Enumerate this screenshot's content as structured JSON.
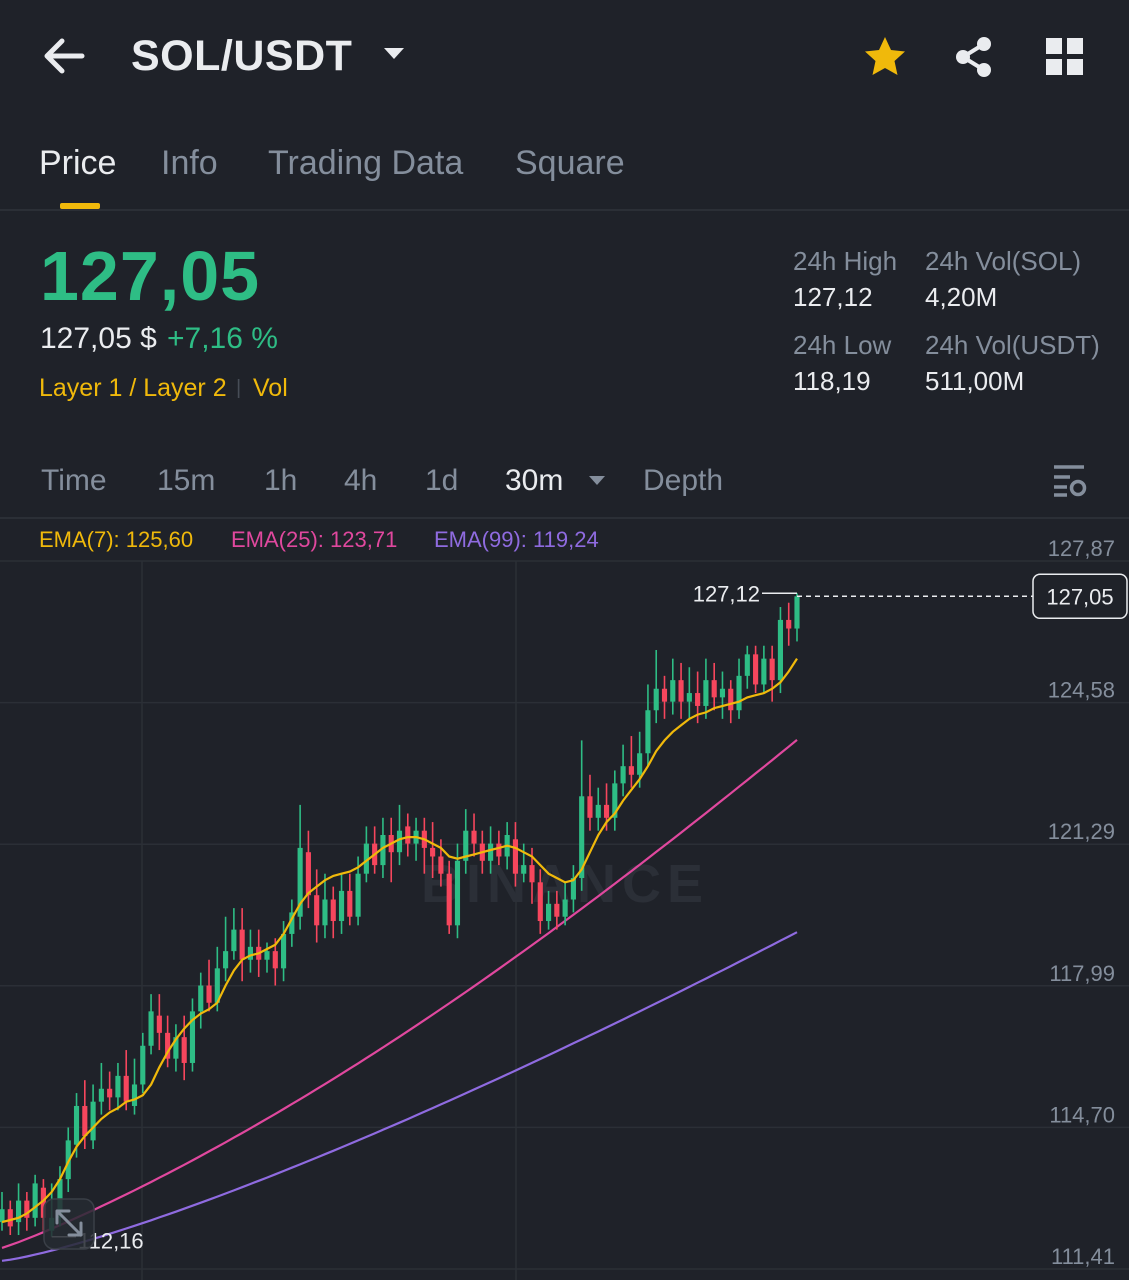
{
  "header": {
    "pair": "SOL/USDT",
    "icons": {
      "back": "arrow-left-icon",
      "pair_menu": "caret-down-icon",
      "favorite": "star-icon",
      "share": "share-icon",
      "more": "grid-icon"
    },
    "favorite_color": "#f0b90b"
  },
  "tabs": [
    {
      "label": "Price",
      "active": true
    },
    {
      "label": "Info",
      "active": false
    },
    {
      "label": "Trading Data",
      "active": false
    },
    {
      "label": "Square",
      "active": false
    }
  ],
  "price": {
    "last": "127,05",
    "fiat": "127,05 $",
    "change": "+7,16 %",
    "tag_layer": "Layer 1 / Layer 2",
    "tag_vol": "Vol",
    "up_color": "#2ebd85"
  },
  "stats": {
    "high_label": "24h High",
    "high_value": "127,12",
    "vol_sol_label": "24h Vol(SOL)",
    "vol_sol_value": "4,20M",
    "low_label": "24h Low",
    "low_value": "118,19",
    "vol_usdt_label": "24h Vol(USDT)",
    "vol_usdt_value": "511,00M"
  },
  "intervals": [
    {
      "label": "Time",
      "active": false
    },
    {
      "label": "15m",
      "active": false
    },
    {
      "label": "1h",
      "active": false
    },
    {
      "label": "4h",
      "active": false
    },
    {
      "label": "1d",
      "active": false
    },
    {
      "label": "30m",
      "active": true
    },
    {
      "label": "Depth",
      "active": false
    }
  ],
  "interval_icons": {
    "dropdown": "caret-down-icon",
    "settings": "chart-settings-icon"
  },
  "ema": [
    {
      "label": "EMA(7): 125,60",
      "color": "#f0b90b"
    },
    {
      "label": "EMA(25): 123,71",
      "color": "#e0489e"
    },
    {
      "label": "EMA(99): 119,24",
      "color": "#8f6be0"
    }
  ],
  "chart_data": {
    "type": "candlestick",
    "y_ticks": [
      "127,87",
      "124,58",
      "121,29",
      "117,99",
      "114,70",
      "111,41"
    ],
    "ylim": [
      111.41,
      127.87
    ],
    "current_price_label": "127,05",
    "current_price": 127.05,
    "high_marker": "127,12",
    "low_marker": "112,16",
    "watermark": "BINANCE",
    "colors": {
      "up": "#2ebd85",
      "down": "#f6465d",
      "ema7": "#f0b90b",
      "ema25": "#e0489e",
      "ema99": "#8f6be0"
    },
    "candles": [
      {
        "o": 112.5,
        "c": 112.8,
        "h": 113.2,
        "l": 112.3
      },
      {
        "o": 112.8,
        "c": 112.4,
        "h": 113.0,
        "l": 112.2
      },
      {
        "o": 112.5,
        "c": 113.0,
        "h": 113.4,
        "l": 112.2
      },
      {
        "o": 113.0,
        "c": 112.6,
        "h": 113.2,
        "l": 112.3
      },
      {
        "o": 112.6,
        "c": 113.4,
        "h": 113.6,
        "l": 112.4
      },
      {
        "o": 113.3,
        "c": 112.6,
        "h": 113.5,
        "l": 112.3
      },
      {
        "o": 112.3,
        "c": 112.6,
        "h": 113.4,
        "l": 112.16
      },
      {
        "o": 112.6,
        "c": 113.5,
        "h": 113.8,
        "l": 112.4
      },
      {
        "o": 113.5,
        "c": 114.4,
        "h": 114.7,
        "l": 113.2
      },
      {
        "o": 114.3,
        "c": 115.2,
        "h": 115.5,
        "l": 114.0
      },
      {
        "o": 115.2,
        "c": 114.5,
        "h": 115.8,
        "l": 114.2
      },
      {
        "o": 114.4,
        "c": 115.3,
        "h": 115.7,
        "l": 114.2
      },
      {
        "o": 115.3,
        "c": 115.6,
        "h": 116.2,
        "l": 115.0
      },
      {
        "o": 115.6,
        "c": 115.4,
        "h": 116.0,
        "l": 115.1
      },
      {
        "o": 115.4,
        "c": 115.9,
        "h": 116.2,
        "l": 115.1
      },
      {
        "o": 115.9,
        "c": 115.3,
        "h": 116.5,
        "l": 115.1
      },
      {
        "o": 115.2,
        "c": 115.7,
        "h": 116.3,
        "l": 115.0
      },
      {
        "o": 115.7,
        "c": 116.6,
        "h": 116.9,
        "l": 115.5
      },
      {
        "o": 116.6,
        "c": 117.4,
        "h": 117.8,
        "l": 116.4
      },
      {
        "o": 117.3,
        "c": 116.9,
        "h": 117.8,
        "l": 116.5
      },
      {
        "o": 116.9,
        "c": 116.3,
        "h": 117.3,
        "l": 116.1
      },
      {
        "o": 116.3,
        "c": 116.8,
        "h": 117.1,
        "l": 116.0
      },
      {
        "o": 116.8,
        "c": 116.2,
        "h": 117.3,
        "l": 115.8
      },
      {
        "o": 116.2,
        "c": 117.4,
        "h": 117.7,
        "l": 116.0
      },
      {
        "o": 117.4,
        "c": 118.0,
        "h": 118.3,
        "l": 117.0
      },
      {
        "o": 118.0,
        "c": 117.6,
        "h": 118.6,
        "l": 117.4
      },
      {
        "o": 117.6,
        "c": 118.4,
        "h": 118.9,
        "l": 117.4
      },
      {
        "o": 118.4,
        "c": 118.8,
        "h": 119.6,
        "l": 118.1
      },
      {
        "o": 118.8,
        "c": 119.3,
        "h": 119.8,
        "l": 118.6
      },
      {
        "o": 119.3,
        "c": 118.6,
        "h": 119.8,
        "l": 118.1
      },
      {
        "o": 118.6,
        "c": 118.9,
        "h": 119.3,
        "l": 118.3
      },
      {
        "o": 118.9,
        "c": 118.6,
        "h": 119.3,
        "l": 118.2
      },
      {
        "o": 118.6,
        "c": 118.8,
        "h": 119.0,
        "l": 118.3
      },
      {
        "o": 118.8,
        "c": 118.4,
        "h": 119.1,
        "l": 118.0
      },
      {
        "o": 118.4,
        "c": 119.2,
        "h": 119.5,
        "l": 118.1
      },
      {
        "o": 119.2,
        "c": 119.7,
        "h": 120.0,
        "l": 118.9
      },
      {
        "o": 119.6,
        "c": 121.2,
        "h": 122.2,
        "l": 119.3
      },
      {
        "o": 121.1,
        "c": 120.1,
        "h": 121.6,
        "l": 119.8
      },
      {
        "o": 120.1,
        "c": 119.4,
        "h": 120.7,
        "l": 119.0
      },
      {
        "o": 119.4,
        "c": 120.0,
        "h": 120.6,
        "l": 119.1
      },
      {
        "o": 120.0,
        "c": 119.5,
        "h": 120.3,
        "l": 119.1
      },
      {
        "o": 119.5,
        "c": 120.2,
        "h": 120.6,
        "l": 119.2
      },
      {
        "o": 120.2,
        "c": 119.6,
        "h": 120.6,
        "l": 119.4
      },
      {
        "o": 119.6,
        "c": 120.6,
        "h": 121.0,
        "l": 119.4
      },
      {
        "o": 120.6,
        "c": 121.3,
        "h": 121.7,
        "l": 120.4
      },
      {
        "o": 121.3,
        "c": 120.8,
        "h": 121.7,
        "l": 120.6
      },
      {
        "o": 120.8,
        "c": 121.5,
        "h": 121.9,
        "l": 120.5
      },
      {
        "o": 121.5,
        "c": 121.1,
        "h": 121.9,
        "l": 120.4
      },
      {
        "o": 121.1,
        "c": 121.6,
        "h": 122.2,
        "l": 120.8
      },
      {
        "o": 121.7,
        "c": 121.3,
        "h": 122.0,
        "l": 121.0
      },
      {
        "o": 121.3,
        "c": 121.6,
        "h": 121.9,
        "l": 120.9
      },
      {
        "o": 121.6,
        "c": 121.2,
        "h": 121.9,
        "l": 120.6
      },
      {
        "o": 121.2,
        "c": 121.0,
        "h": 121.8,
        "l": 120.5
      },
      {
        "o": 121.0,
        "c": 120.6,
        "h": 121.4,
        "l": 120.3
      },
      {
        "o": 120.6,
        "c": 119.4,
        "h": 120.9,
        "l": 119.2
      },
      {
        "o": 119.4,
        "c": 120.9,
        "h": 121.3,
        "l": 119.1
      },
      {
        "o": 120.9,
        "c": 121.6,
        "h": 122.1,
        "l": 120.6
      },
      {
        "o": 121.6,
        "c": 121.3,
        "h": 122.0,
        "l": 121.0
      },
      {
        "o": 121.3,
        "c": 120.9,
        "h": 121.6,
        "l": 120.6
      },
      {
        "o": 120.9,
        "c": 121.3,
        "h": 121.7,
        "l": 120.6
      },
      {
        "o": 121.3,
        "c": 121.0,
        "h": 121.6,
        "l": 120.8
      },
      {
        "o": 121.0,
        "c": 121.5,
        "h": 121.8,
        "l": 120.7
      },
      {
        "o": 121.4,
        "c": 120.6,
        "h": 121.8,
        "l": 120.3
      },
      {
        "o": 120.6,
        "c": 120.8,
        "h": 121.3,
        "l": 120.4
      },
      {
        "o": 120.8,
        "c": 120.4,
        "h": 121.2,
        "l": 119.9
      },
      {
        "o": 120.4,
        "c": 119.5,
        "h": 120.7,
        "l": 119.2
      },
      {
        "o": 119.5,
        "c": 119.9,
        "h": 120.2,
        "l": 119.3
      },
      {
        "o": 119.9,
        "c": 119.6,
        "h": 120.2,
        "l": 119.3
      },
      {
        "o": 119.6,
        "c": 120.0,
        "h": 120.4,
        "l": 119.4
      },
      {
        "o": 120.0,
        "c": 120.5,
        "h": 120.8,
        "l": 119.7
      },
      {
        "o": 120.5,
        "c": 122.4,
        "h": 123.7,
        "l": 120.2
      },
      {
        "o": 122.4,
        "c": 121.9,
        "h": 122.9,
        "l": 121.6
      },
      {
        "o": 121.9,
        "c": 122.2,
        "h": 122.6,
        "l": 121.6
      },
      {
        "o": 122.2,
        "c": 121.9,
        "h": 122.7,
        "l": 121.6
      },
      {
        "o": 121.9,
        "c": 122.7,
        "h": 123.0,
        "l": 121.6
      },
      {
        "o": 122.7,
        "c": 123.1,
        "h": 123.6,
        "l": 122.4
      },
      {
        "o": 123.1,
        "c": 122.9,
        "h": 123.8,
        "l": 122.6
      },
      {
        "o": 122.9,
        "c": 123.4,
        "h": 123.9,
        "l": 122.6
      },
      {
        "o": 123.4,
        "c": 124.4,
        "h": 125.0,
        "l": 123.1
      },
      {
        "o": 124.4,
        "c": 124.9,
        "h": 125.8,
        "l": 124.1
      },
      {
        "o": 124.9,
        "c": 124.6,
        "h": 125.2,
        "l": 124.2
      },
      {
        "o": 124.6,
        "c": 125.1,
        "h": 125.6,
        "l": 124.3
      },
      {
        "o": 125.1,
        "c": 124.6,
        "h": 125.5,
        "l": 124.2
      },
      {
        "o": 124.6,
        "c": 124.8,
        "h": 125.4,
        "l": 124.2
      },
      {
        "o": 124.8,
        "c": 124.5,
        "h": 125.3,
        "l": 124.1
      },
      {
        "o": 124.5,
        "c": 125.1,
        "h": 125.6,
        "l": 124.2
      },
      {
        "o": 125.1,
        "c": 124.7,
        "h": 125.5,
        "l": 124.4
      },
      {
        "o": 124.7,
        "c": 124.9,
        "h": 125.3,
        "l": 124.2
      },
      {
        "o": 124.9,
        "c": 124.4,
        "h": 125.1,
        "l": 124.1
      },
      {
        "o": 124.4,
        "c": 125.2,
        "h": 125.6,
        "l": 124.2
      },
      {
        "o": 125.2,
        "c": 125.7,
        "h": 125.9,
        "l": 124.9
      },
      {
        "o": 125.7,
        "c": 125.0,
        "h": 125.9,
        "l": 124.8
      },
      {
        "o": 125.0,
        "c": 125.6,
        "h": 125.9,
        "l": 124.8
      },
      {
        "o": 125.6,
        "c": 125.1,
        "h": 125.9,
        "l": 124.6
      },
      {
        "o": 125.1,
        "c": 126.5,
        "h": 126.8,
        "l": 124.8
      },
      {
        "o": 126.5,
        "c": 126.3,
        "h": 126.9,
        "l": 125.9
      },
      {
        "o": 126.3,
        "c": 127.05,
        "h": 127.12,
        "l": 126.0
      }
    ],
    "ema7": [
      112.5,
      112.55,
      112.6,
      112.7,
      112.85,
      113.0,
      113.2,
      113.5,
      113.9,
      114.25,
      114.5,
      114.7,
      114.9,
      115.05,
      115.15,
      115.3,
      115.35,
      115.45,
      115.7,
      116.1,
      116.45,
      116.75,
      117.0,
      117.2,
      117.35,
      117.45,
      117.6,
      118.0,
      118.35,
      118.6,
      118.7,
      118.75,
      118.85,
      118.95,
      119.2,
      119.55,
      119.9,
      120.15,
      120.3,
      120.45,
      120.55,
      120.6,
      120.65,
      120.75,
      120.9,
      121.05,
      121.2,
      121.3,
      121.4,
      121.45,
      121.45,
      121.4,
      121.3,
      121.2,
      121.0,
      120.95,
      121.0,
      121.05,
      121.1,
      121.15,
      121.2,
      121.25,
      121.2,
      121.1,
      121.0,
      120.8,
      120.6,
      120.5,
      120.4,
      120.45,
      120.7,
      121.1,
      121.5,
      121.8,
      122.0,
      122.3,
      122.55,
      122.8,
      123.1,
      123.45,
      123.7,
      123.9,
      124.05,
      124.2,
      124.3,
      124.35,
      124.45,
      124.5,
      124.55,
      124.6,
      124.7,
      124.75,
      124.8,
      124.9,
      125.05,
      125.3,
      125.6
    ]
  }
}
